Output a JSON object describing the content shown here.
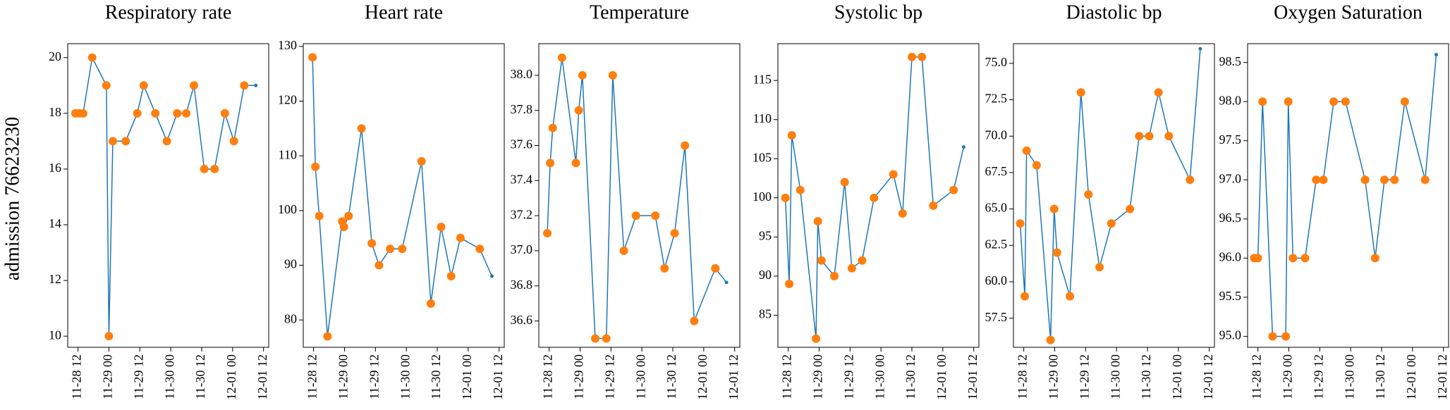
{
  "row_label": "admission 76623230",
  "chart_data": [
    {
      "type": "line",
      "title": "Respiratory rate",
      "x": [
        11,
        12.5,
        14,
        17.5,
        23,
        24,
        25.5,
        30.5,
        35,
        37.5,
        42,
        46.5,
        50.5,
        54,
        57,
        61,
        65,
        69,
        72.5,
        76.5,
        81
      ],
      "series": [
        {
          "color": "#1f77b4",
          "style": "line",
          "values": [
            18,
            18,
            18,
            20,
            19,
            10,
            17,
            17,
            18,
            19,
            18,
            17,
            18,
            18,
            19,
            16,
            16,
            18,
            17,
            19,
            19
          ]
        },
        {
          "color": "#ff7f0e",
          "style": "markers",
          "values": [
            18,
            18,
            18,
            20,
            19,
            10,
            17,
            17,
            18,
            19,
            18,
            17,
            18,
            18,
            19,
            16,
            16,
            18,
            17,
            19,
            null
          ]
        }
      ],
      "xlim": [
        8,
        86
      ],
      "xticks": [
        {
          "value": 12,
          "label": "11-28 12"
        },
        {
          "value": 24,
          "label": "11-29 00"
        },
        {
          "value": 36,
          "label": "11-29 12"
        },
        {
          "value": 48,
          "label": "11-30 00"
        },
        {
          "value": 60,
          "label": "11-30 12"
        },
        {
          "value": 72,
          "label": "12-01 00"
        },
        {
          "value": 84,
          "label": "12-01 12"
        }
      ],
      "ylim": [
        9.6,
        20.5
      ],
      "yticks": [
        10,
        12,
        14,
        16,
        18,
        20
      ]
    },
    {
      "type": "line",
      "title": "Heart rate",
      "x": [
        11.6,
        12.7,
        14.2,
        17.4,
        23.1,
        23.8,
        25.6,
        30.6,
        34.6,
        37.4,
        41.7,
        46.4,
        53.9,
        57.5,
        61.5,
        65.4,
        69,
        76.5,
        81.2
      ],
      "series": [
        {
          "color": "#1f77b4",
          "style": "line",
          "values": [
            128,
            108,
            99,
            77,
            98,
            97,
            99,
            115,
            94,
            90,
            93,
            93,
            109,
            83,
            97,
            88,
            95,
            93,
            88
          ]
        },
        {
          "color": "#ff7f0e",
          "style": "markers",
          "values": [
            128,
            108,
            99,
            77,
            98,
            97,
            99,
            115,
            94,
            90,
            93,
            93,
            109,
            83,
            97,
            88,
            95,
            93,
            null
          ]
        }
      ],
      "xlim": [
        8,
        86
      ],
      "xticks": [
        {
          "value": 12,
          "label": "11-28 12"
        },
        {
          "value": 24,
          "label": "11-29 00"
        },
        {
          "value": 36,
          "label": "11-29 12"
        },
        {
          "value": 48,
          "label": "11-30 00"
        },
        {
          "value": 60,
          "label": "11-30 12"
        },
        {
          "value": 72,
          "label": "12-01 00"
        },
        {
          "value": 84,
          "label": "12-01 12"
        }
      ],
      "ylim": [
        75,
        130.5
      ],
      "yticks": [
        80,
        90,
        100,
        110,
        120,
        130
      ]
    },
    {
      "type": "line",
      "title": "Temperature",
      "x": [
        11.3,
        12.4,
        13.4,
        17,
        22.4,
        23.5,
        24.9,
        29.9,
        34.2,
        36.7,
        41,
        45.7,
        53.2,
        56.8,
        60.7,
        64.7,
        68.3,
        76.5,
        80.8
      ],
      "series": [
        {
          "color": "#1f77b4",
          "style": "line",
          "values": [
            37.1,
            37.5,
            37.7,
            38.1,
            37.5,
            37.8,
            38.0,
            36.5,
            36.5,
            38.0,
            37.0,
            37.2,
            37.2,
            36.9,
            37.1,
            37.6,
            36.6,
            36.9,
            36.82
          ]
        },
        {
          "color": "#ff7f0e",
          "style": "markers",
          "values": [
            37.1,
            37.5,
            37.7,
            38.1,
            37.5,
            37.8,
            38.0,
            36.5,
            36.5,
            38.0,
            37.0,
            37.2,
            37.2,
            36.9,
            37.1,
            37.6,
            36.6,
            36.9,
            null
          ]
        }
      ],
      "xlim": [
        8,
        86
      ],
      "xticks": [
        {
          "value": 12,
          "label": "11-28 12"
        },
        {
          "value": 24,
          "label": "11-29 00"
        },
        {
          "value": 36,
          "label": "11-29 12"
        },
        {
          "value": 48,
          "label": "11-30 00"
        },
        {
          "value": 60,
          "label": "11-30 12"
        },
        {
          "value": 72,
          "label": "12-01 00"
        },
        {
          "value": 84,
          "label": "12-01 12"
        }
      ],
      "ylim": [
        36.45,
        38.18
      ],
      "yticks": [
        36.6,
        36.8,
        {
          "value": 37,
          "label": "37.0"
        },
        37.2,
        37.4,
        37.6,
        37.8,
        {
          "value": 38,
          "label": "38.0"
        }
      ]
    },
    {
      "type": "line",
      "title": "Systolic bp",
      "x": [
        10.9,
        12.4,
        13.4,
        16.7,
        22.8,
        23.5,
        24.9,
        29.9,
        33.9,
        36.7,
        40.7,
        45.3,
        52.8,
        56.4,
        60,
        63.9,
        68.3,
        76.2,
        80.1
      ],
      "series": [
        {
          "color": "#1f77b4",
          "style": "line",
          "values": [
            100,
            89,
            108,
            101,
            82,
            97,
            92,
            90,
            102,
            91,
            92,
            100,
            103,
            98,
            118,
            118,
            99,
            101,
            106.5
          ]
        },
        {
          "color": "#ff7f0e",
          "style": "markers",
          "values": [
            100,
            89,
            108,
            101,
            82,
            97,
            92,
            90,
            102,
            91,
            92,
            100,
            103,
            98,
            118,
            118,
            99,
            101,
            null
          ]
        }
      ],
      "xlim": [
        8,
        86
      ],
      "xticks": [
        {
          "value": 12,
          "label": "11-28 12"
        },
        {
          "value": 24,
          "label": "11-29 00"
        },
        {
          "value": 36,
          "label": "11-29 12"
        },
        {
          "value": 48,
          "label": "11-30 00"
        },
        {
          "value": 60,
          "label": "11-30 12"
        },
        {
          "value": 72,
          "label": "12-01 00"
        },
        {
          "value": 84,
          "label": "12-01 12"
        }
      ],
      "ylim": [
        80.9,
        119.7
      ],
      "yticks": [
        85,
        90,
        95,
        100,
        105,
        110,
        115
      ]
    },
    {
      "type": "line",
      "title": "Diastolic bp",
      "x": [
        10.6,
        12.4,
        13.1,
        17,
        22.4,
        23.8,
        24.9,
        29.9,
        34.2,
        37.1,
        41.4,
        46,
        53.2,
        56.8,
        60.7,
        64.3,
        68.3,
        76.5,
        80.5
      ],
      "series": [
        {
          "color": "#1f77b4",
          "style": "line",
          "values": [
            64,
            59,
            69,
            68,
            56,
            65,
            62,
            59,
            73,
            66,
            61,
            64,
            65,
            70,
            70,
            73,
            70,
            67,
            76
          ]
        },
        {
          "color": "#ff7f0e",
          "style": "markers",
          "values": [
            64,
            59,
            69,
            68,
            56,
            65,
            62,
            59,
            73,
            66,
            61,
            64,
            65,
            70,
            70,
            73,
            70,
            67,
            null
          ]
        }
      ],
      "xlim": [
        8,
        86
      ],
      "xticks": [
        {
          "value": 12,
          "label": "11-28 12"
        },
        {
          "value": 24,
          "label": "11-29 00"
        },
        {
          "value": 36,
          "label": "11-29 12"
        },
        {
          "value": 48,
          "label": "11-30 00"
        },
        {
          "value": 60,
          "label": "11-30 12"
        },
        {
          "value": 72,
          "label": "12-01 00"
        },
        {
          "value": 84,
          "label": "12-01 12"
        }
      ],
      "ylim": [
        55.5,
        76.35
      ],
      "yticks": [
        57.5,
        {
          "value": 60,
          "label": "60.0"
        },
        62.5,
        {
          "value": 65,
          "label": "65.0"
        },
        67.5,
        {
          "value": 70,
          "label": "70.0"
        },
        72.5,
        {
          "value": 75,
          "label": "75.0"
        }
      ]
    },
    {
      "type": "line",
      "title": "Oxygen Saturation",
      "x": [
        10.6,
        12,
        13.8,
        17.7,
        22.8,
        23.8,
        25.6,
        30.3,
        34.6,
        37.4,
        41.4,
        46,
        53.6,
        57.5,
        61.1,
        65,
        69,
        76.9,
        81.2
      ],
      "series": [
        {
          "color": "#1f77b4",
          "style": "line",
          "values": [
            96,
            96,
            98,
            95,
            95,
            98,
            96,
            96,
            97,
            97,
            98,
            98,
            97,
            96,
            97,
            97,
            98,
            97,
            98.6
          ]
        },
        {
          "color": "#ff7f0e",
          "style": "markers",
          "values": [
            96,
            96,
            98,
            95,
            95,
            98,
            96,
            96,
            97,
            97,
            98,
            98,
            97,
            96,
            97,
            97,
            98,
            97,
            null
          ]
        }
      ],
      "xlim": [
        8,
        86
      ],
      "xticks": [
        {
          "value": 12,
          "label": "11-28 12"
        },
        {
          "value": 24,
          "label": "11-29 00"
        },
        {
          "value": 36,
          "label": "11-29 12"
        },
        {
          "value": 48,
          "label": "11-30 00"
        },
        {
          "value": 60,
          "label": "11-30 12"
        },
        {
          "value": 72,
          "label": "12-01 00"
        },
        {
          "value": 84,
          "label": "12-01 12"
        }
      ],
      "ylim": [
        94.86,
        98.74
      ],
      "yticks": [
        {
          "value": 95,
          "label": "95.0"
        },
        95.5,
        {
          "value": 96,
          "label": "96.0"
        },
        96.5,
        {
          "value": 97,
          "label": "97.0"
        },
        97.5,
        {
          "value": 98,
          "label": "98.0"
        },
        98.5
      ]
    }
  ]
}
